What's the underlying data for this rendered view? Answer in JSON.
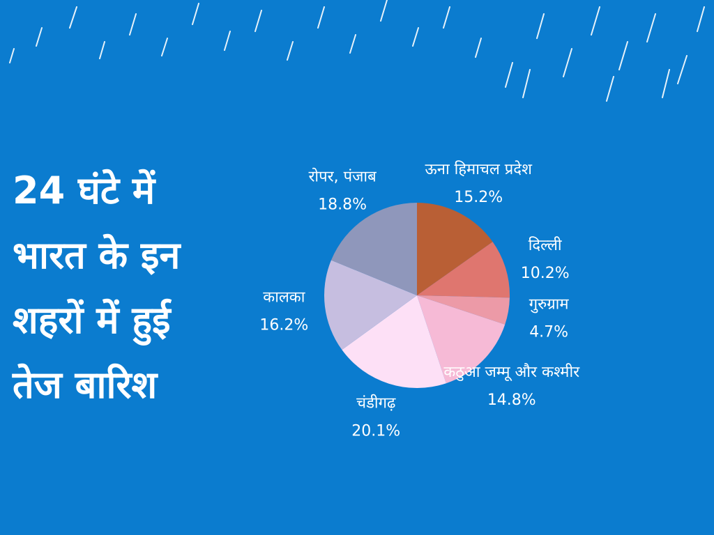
{
  "chart_data": {
    "type": "pie",
    "title": [
      "24 घंटे में",
      "भारत के इन",
      "शहरों में हुई",
      "तेज बारिश"
    ],
    "categories": [
      "ऊना हिमाचल प्रदेश",
      "दिल्ली",
      "गुरुग्राम",
      "कठुआ जम्मू और कश्मीर",
      "चंडीगढ़",
      "कालका",
      "रोपर, पंजाब"
    ],
    "values": [
      15.2,
      10.2,
      4.7,
      14.8,
      20.1,
      16.2,
      18.8
    ],
    "value_labels": [
      "15.2%",
      "10.2%",
      "4.7%",
      "14.8%",
      "20.1%",
      "16.2%",
      "18.8%"
    ],
    "colors": [
      "#b95f35",
      "#df766f",
      "#ec9aa7",
      "#f6bad6",
      "#fde0f6",
      "#c6bee0",
      "#8f97bb"
    ]
  }
}
